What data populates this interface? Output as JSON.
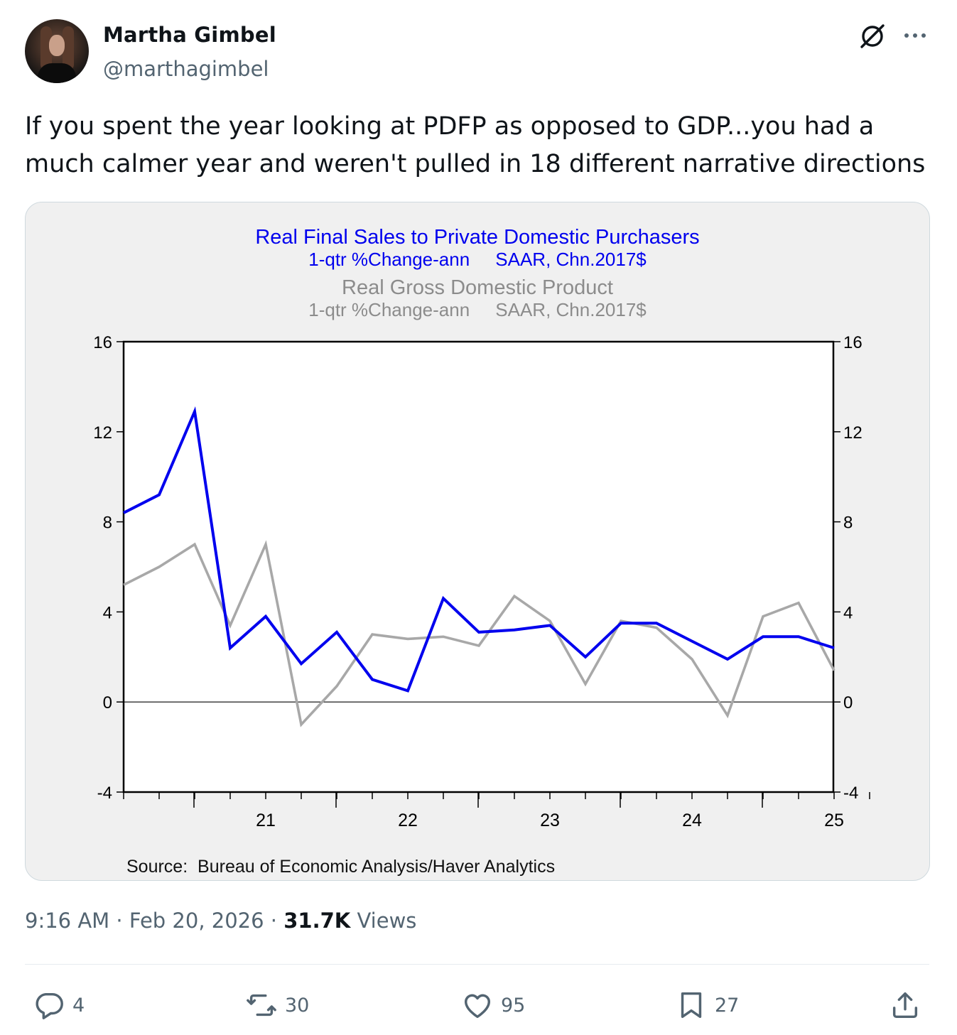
{
  "author": {
    "name": "Martha Gimbel",
    "handle": "@marthagimbel"
  },
  "tweet": {
    "text": "If you spent the year looking at PDFP as opposed to GDP...you had a much calmer year and weren't pulled in 18 different narrative directions"
  },
  "meta": {
    "time": "9:16 AM",
    "sep1": " · ",
    "date": "Feb 20, 2026",
    "sep2": " · ",
    "views_count": "31.7K",
    "views_label": " Views"
  },
  "actions": {
    "replies": "4",
    "reposts": "30",
    "likes": "95",
    "bookmarks": "27"
  },
  "icons": [
    "avatar",
    "grok-icon",
    "more-icon",
    "reply-icon",
    "repost-icon",
    "like-icon",
    "bookmark-icon",
    "share-icon"
  ],
  "colors": {
    "accent": "#1d9bf0",
    "series1": "#0000ee",
    "series2": "#a8a8a8",
    "text_secondary": "#536471"
  },
  "chart_data": {
    "type": "line",
    "titles": [
      {
        "text": "Real Final Sales to Private Domestic Purchasers",
        "color": "#0000ee"
      },
      {
        "text": "1-qtr %Change-ann     SAAR, Chn.2017$",
        "color": "#0000ee"
      },
      {
        "text": "Real Gross Domestic Product",
        "color": "#8c8c8c"
      },
      {
        "text": "1-qtr %Change-ann     SAAR, Chn.2017$",
        "color": "#8c8c8c"
      }
    ],
    "source": "Source:  Bureau of Economic Analysis/Haver Analytics",
    "x_tick_labels": [
      "21",
      "22",
      "23",
      "24",
      "25"
    ],
    "y_ticks": [
      -4,
      0,
      4,
      8,
      12,
      16
    ],
    "ylim": [
      -4,
      16
    ],
    "x": [
      "2020Q3",
      "2020Q4",
      "2021Q1",
      "2021Q2",
      "2021Q3",
      "2021Q4",
      "2022Q1",
      "2022Q2",
      "2022Q3",
      "2022Q4",
      "2023Q1",
      "2023Q2",
      "2023Q3",
      "2023Q4",
      "2024Q1",
      "2024Q2",
      "2024Q3",
      "2024Q4",
      "2025Q1",
      "2025Q2",
      "2025Q3"
    ],
    "series": [
      {
        "values": [
          8.4,
          9.2,
          12.9,
          2.4,
          3.8,
          1.7,
          3.1,
          1.0,
          0.5,
          4.6,
          3.1,
          3.2,
          3.4,
          2.0,
          3.5,
          3.5,
          2.7,
          1.9,
          2.9,
          2.9,
          2.4
        ],
        "color": "#0000ee"
      },
      {
        "values": [
          5.2,
          6.0,
          7.0,
          3.4,
          7.0,
          -1.0,
          0.7,
          3.0,
          2.8,
          2.9,
          2.5,
          4.7,
          3.6,
          0.8,
          3.6,
          3.3,
          1.9,
          -0.6,
          3.8,
          4.4,
          1.4
        ],
        "color": "#a8a8a8"
      }
    ]
  }
}
